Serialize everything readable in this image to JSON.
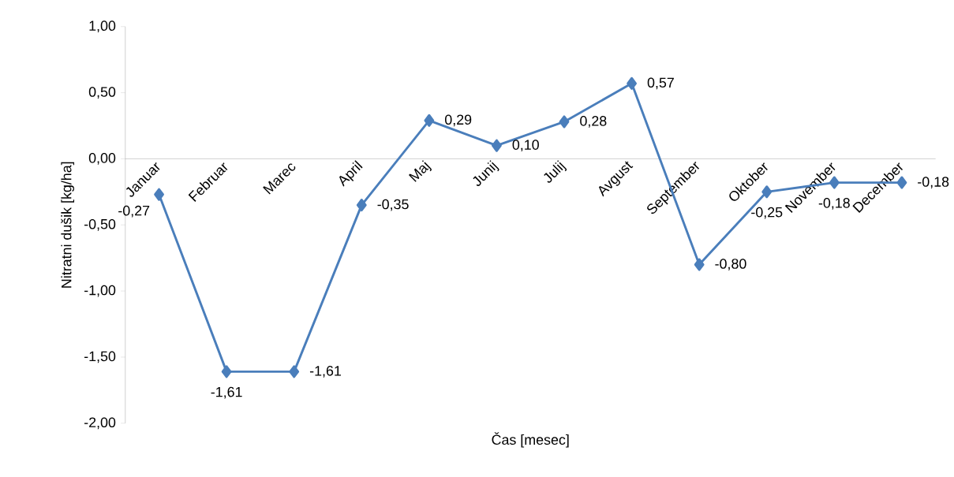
{
  "chart_data": {
    "type": "line",
    "xlabel": "Čas [mesec]",
    "ylabel": "Nitratni dušik [kg/ha]",
    "categories": [
      "Januar",
      "Februar",
      "Marec",
      "April",
      "Maj",
      "Junij",
      "Julij",
      "Avgust",
      "September",
      "Oktober",
      "November",
      "December"
    ],
    "values": [
      -0.27,
      -1.61,
      -1.61,
      -0.35,
      0.29,
      0.1,
      0.28,
      0.57,
      -0.8,
      -0.25,
      -0.18,
      -0.18
    ],
    "value_labels": [
      "-0,27",
      "-1,61",
      "-1,61",
      "-0,35",
      "0,29",
      "0,10",
      "0,28",
      "0,57",
      "-0,80",
      "-0,25",
      "-0,18",
      "-0,18"
    ],
    "color": "#4a7ebb",
    "marker": "diamond",
    "line_style": "solid",
    "ylim": [
      -2,
      1
    ],
    "yticks": [
      {
        "value": -2,
        "label": "-2,00"
      },
      {
        "value": -1.5,
        "label": "-1,50"
      },
      {
        "value": -1,
        "label": "-1,00"
      },
      {
        "value": -0.5,
        "label": "-0,50"
      },
      {
        "value": 0,
        "label": "0,00"
      },
      {
        "value": 0.5,
        "label": "0,50"
      },
      {
        "value": 1,
        "label": "1,00"
      }
    ],
    "grid": false
  }
}
